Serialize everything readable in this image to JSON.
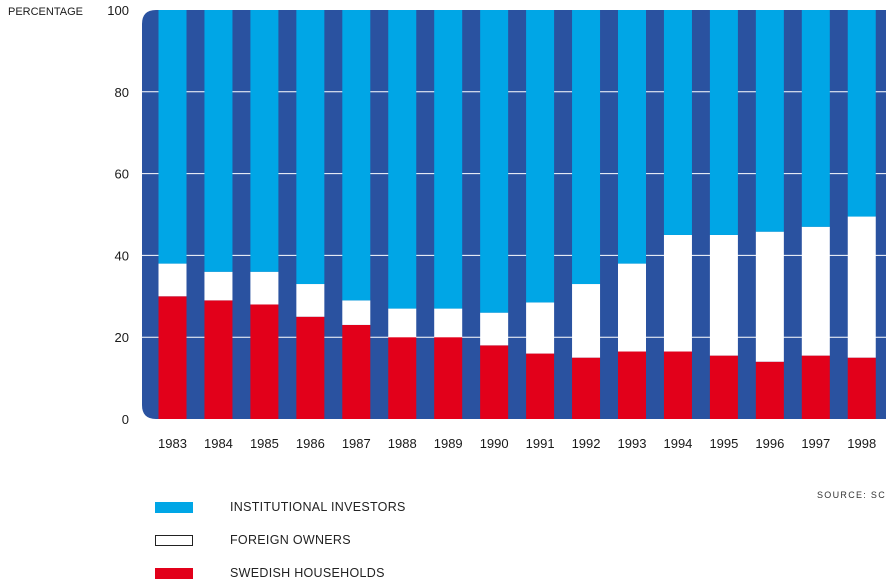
{
  "chart_data": {
    "type": "bar",
    "stacked": true,
    "ylabel": "PERCENTAGE",
    "ylim": [
      0,
      100
    ],
    "yticks": [
      0,
      20,
      40,
      60,
      80,
      100
    ],
    "grid": true,
    "categories": [
      "1983",
      "1984",
      "1985",
      "1986",
      "1987",
      "1988",
      "1989",
      "1990",
      "1991",
      "1992",
      "1993",
      "1994",
      "1995",
      "1996",
      "1997",
      "1998"
    ],
    "series": [
      {
        "name": "SWEDISH HOUSEHOLDS",
        "color": "#e2001a",
        "values": [
          30,
          29,
          28,
          25,
          23,
          20,
          20,
          18,
          16,
          15,
          16.5,
          16.5,
          15.5,
          14,
          15.5,
          15
        ]
      },
      {
        "name": "FOREIGN OWNERS",
        "color": "#ffffff",
        "values": [
          8,
          7,
          8,
          8,
          6,
          7,
          7,
          8,
          12.5,
          18,
          21.5,
          28.5,
          29.5,
          31.8,
          31.5,
          34.5
        ]
      },
      {
        "name": "INSTITUTIONAL INVESTORS",
        "color": "#00a6e6",
        "values": [
          62,
          64,
          64,
          67,
          71,
          73,
          73,
          74,
          71.5,
          67,
          62,
          55,
          55,
          54.2,
          53,
          50.5
        ]
      }
    ],
    "background_color": "#2a52a0",
    "legend_placement": "bottom-left"
  },
  "legend_order": [
    "INSTITUTIONAL INVESTORS",
    "FOREIGN OWNERS",
    "SWEDISH HOUSEHOLDS"
  ],
  "source_text": "SOURCE: SC"
}
